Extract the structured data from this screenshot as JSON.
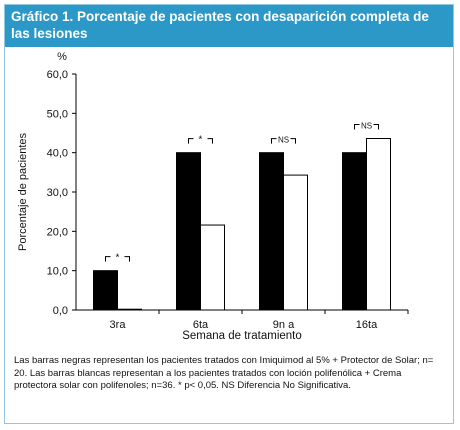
{
  "figure": {
    "title": "Gráfico 1. Porcentaje de pacientes con desaparición completa de las lesiones",
    "caption": "Las barras negras representan los pacientes tratados con Imiquimod al 5% + Protector de Solar; n= 20. Las barras blancas representan a los pacientes tratados con loción polifenólica + Crema protectora solar con polifenoles; n=36. * p< 0,05. NS Diferencia No Significativa."
  },
  "chart_data": {
    "type": "bar",
    "categories": [
      "3ra",
      "6ta",
      "9n a",
      "16ta"
    ],
    "series": [
      {
        "color": "#000000",
        "values": [
          10.0,
          40.0,
          40.0,
          40.0
        ]
      },
      {
        "color": "#ffffff",
        "values": [
          0.2,
          21.6,
          34.3,
          43.6
        ]
      }
    ],
    "xlabel": "Semana de tratamiento",
    "ylabel": "Porcentaje de pacientes",
    "yunit": "%",
    "ylim": [
      0,
      60
    ],
    "yticks": [
      "0,0",
      "10,0",
      "20,0",
      "30,0",
      "40,0",
      "50,0",
      "60,0"
    ],
    "significance": [
      "*",
      "*",
      "NS",
      "NS"
    ],
    "grid": false,
    "legend": "none"
  }
}
